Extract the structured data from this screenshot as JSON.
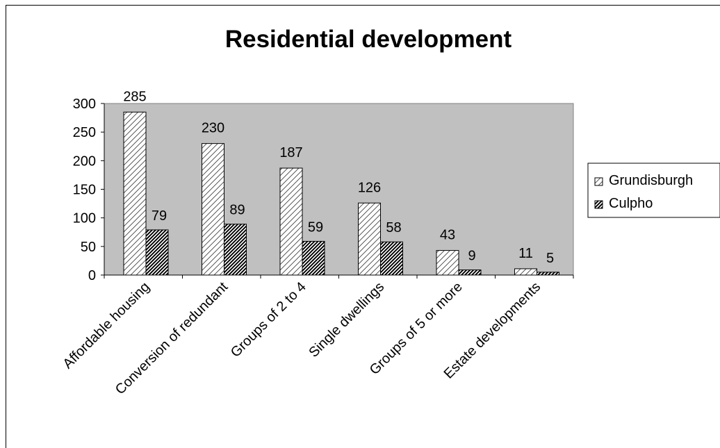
{
  "chart_data": {
    "type": "bar",
    "title": "Residential development",
    "xlabel": "",
    "ylabel": "",
    "categories": [
      "Affordable housing",
      "Conversion of redundant",
      "Groups of 2 to 4",
      "Single dwellings",
      "Groups of 5 or more",
      "Estate developments"
    ],
    "series": [
      {
        "name": "Grundisburgh",
        "values": [
          285,
          230,
          187,
          126,
          43,
          11
        ],
        "pattern": "light-diagonal-hatch"
      },
      {
        "name": "Culpho",
        "values": [
          79,
          89,
          59,
          58,
          9,
          5
        ],
        "pattern": "dark-diagonal-hatch"
      }
    ],
    "ylim": [
      0,
      300
    ],
    "yticks": [
      "0",
      "50",
      "100",
      "150",
      "200",
      "250",
      "300"
    ],
    "data_labels": true,
    "grid": false,
    "legend_position": "right",
    "plot_background": "#c0c0c0"
  }
}
